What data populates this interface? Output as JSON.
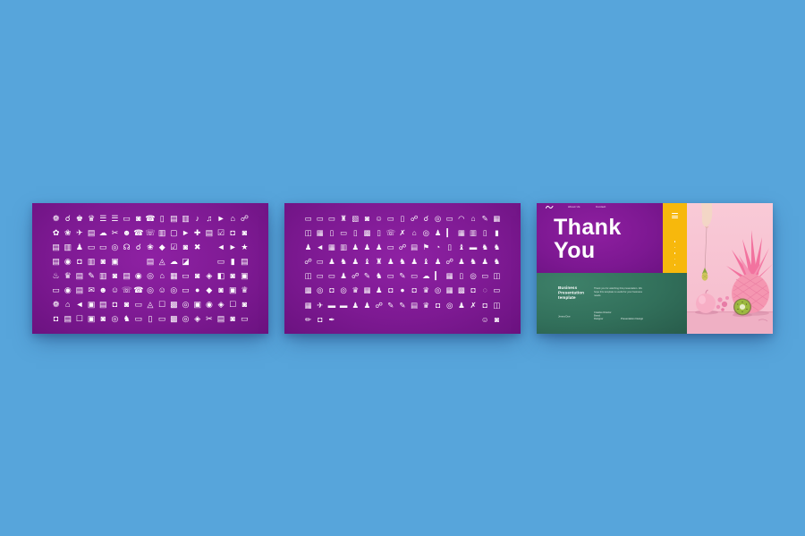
{
  "canvas": {
    "background": "#57a5db"
  },
  "colors": {
    "slide_purple_center": "#8e21a3",
    "slide_purple_edge": "#6b1280",
    "yellow_block": "#f7b80c",
    "green_block": "#32705b",
    "photo_pink_bg": "#f8c6d4",
    "icon_color": "#ffffff"
  },
  "slide1": {
    "description": "icon set grid, solid white glyph icons on purple",
    "rows": [
      [
        "❁",
        "☌",
        "♚",
        "♛",
        "☰",
        "☰",
        "▭",
        "◙",
        "☎",
        "▯",
        "▤",
        "▥",
        "♪",
        "♫",
        "►",
        "⌂",
        "☍"
      ],
      [
        "✿",
        "❀",
        "✈",
        "▤",
        "☁",
        "✂",
        "☻",
        "☎",
        "☏",
        "▥",
        "▢",
        "►",
        "✚",
        "▤",
        "☑",
        "◘",
        "◙"
      ],
      [
        "▤",
        "▥",
        "♟",
        "▭",
        "▭",
        "◎",
        "☊",
        "☌",
        "❀",
        "◆",
        "☑",
        "◙",
        "✖",
        "",
        "◄",
        "►",
        "★"
      ],
      [
        "▤",
        "◉",
        "◘",
        "▥",
        "◙",
        "▣",
        "",
        "",
        "▤",
        "◬",
        "☁",
        "◪",
        "",
        "",
        "▭",
        "▮",
        "▤"
      ],
      [
        "♨",
        "♛",
        "▤",
        "✎",
        "▥",
        "◙",
        "▤",
        "◉",
        "◎",
        "⌂",
        "▦",
        "▭",
        "◙",
        "◈",
        "◧",
        "◙",
        "▣"
      ],
      [
        "▭",
        "◉",
        "▤",
        "✉",
        "☻",
        "☺",
        "☏",
        "☎",
        "◎",
        "☺",
        "◎",
        "▭",
        "●",
        "◆",
        "◙",
        "▣",
        "♛"
      ],
      [
        "❁",
        "⌂",
        "◄",
        "▣",
        "▤",
        "◘",
        "◙",
        "▭",
        "◬",
        "☐",
        "▩",
        "◎",
        "▣",
        "◉",
        "◈",
        "☐",
        "◙"
      ],
      [
        "◘",
        "▤",
        "☐",
        "▣",
        "◙",
        "◎",
        "♞",
        "▭",
        "▯",
        "▭",
        "▩",
        "◎",
        "◈",
        "✂",
        "▤",
        "◙",
        "▭"
      ]
    ]
  },
  "slide2": {
    "description": "icon set grid, outline white glyph icons on purple",
    "rows": [
      [
        "▭",
        "▭",
        "▭",
        "♜",
        "▧",
        "◙",
        "☺",
        "▭",
        "▯",
        "☍",
        "☌",
        "◎",
        "▭",
        "◠",
        "⌂",
        "✎",
        "▦"
      ],
      [
        "◫",
        "▦",
        "▯",
        "▭",
        "▯",
        "▩",
        "▯",
        "☏",
        "✗",
        "⌂",
        "◎",
        "♟",
        "▎",
        "▦",
        "▥",
        "▯",
        "▮"
      ],
      [
        "♟",
        "◄",
        "▦",
        "▥",
        "♟",
        "♟",
        "♟",
        "▭",
        "☍",
        "▤",
        "⚑",
        "◔",
        "▯",
        "♝",
        "▬",
        "♞",
        "♞"
      ],
      [
        "☍",
        "▭",
        "♟",
        "♞",
        "♟",
        "♝",
        "♜",
        "♟",
        "♞",
        "♟",
        "♝",
        "♟",
        "☍",
        "♟",
        "♞",
        "♟",
        "♞"
      ],
      [
        "◫",
        "▭",
        "▭",
        "♟",
        "☍",
        "✎",
        "♞",
        "▭",
        "✎",
        "▭",
        "☁",
        "▎",
        "▦",
        "▯",
        "◎",
        "▭",
        "◫"
      ],
      [
        "▩",
        "◎",
        "◘",
        "◎",
        "♛",
        "▦",
        "♟",
        "◘",
        "●",
        "◘",
        "♛",
        "◎",
        "▦",
        "▩",
        "◘",
        "◌",
        "▭"
      ],
      [
        "▦",
        "✈",
        "▬",
        "▬",
        "♟",
        "♟",
        "☍",
        "✎",
        "✎",
        "▤",
        "♛",
        "◘",
        "◎",
        "♟",
        "✗",
        "◘",
        "◫"
      ],
      [
        "✏",
        "◘",
        "✒",
        "",
        "",
        "",
        "",
        "",
        "",
        "",
        "",
        "",
        "",
        "",
        "",
        "☺",
        "◙"
      ]
    ]
  },
  "slide3": {
    "header": {
      "menu_item_1": "About Us",
      "menu_item_2": "Contact"
    },
    "title_line1": "Thank",
    "title_line2": "You",
    "subtitle_lines": [
      "Business",
      "Presentation",
      "template"
    ],
    "paragraph": "Thank you for watching this presentation. We hope this template is useful for your business needs.",
    "credits": {
      "left": "Jenna Doe",
      "middle_lines": [
        "Creative Director",
        "Brand",
        "Designer"
      ],
      "right": "Presentation Design"
    }
  }
}
